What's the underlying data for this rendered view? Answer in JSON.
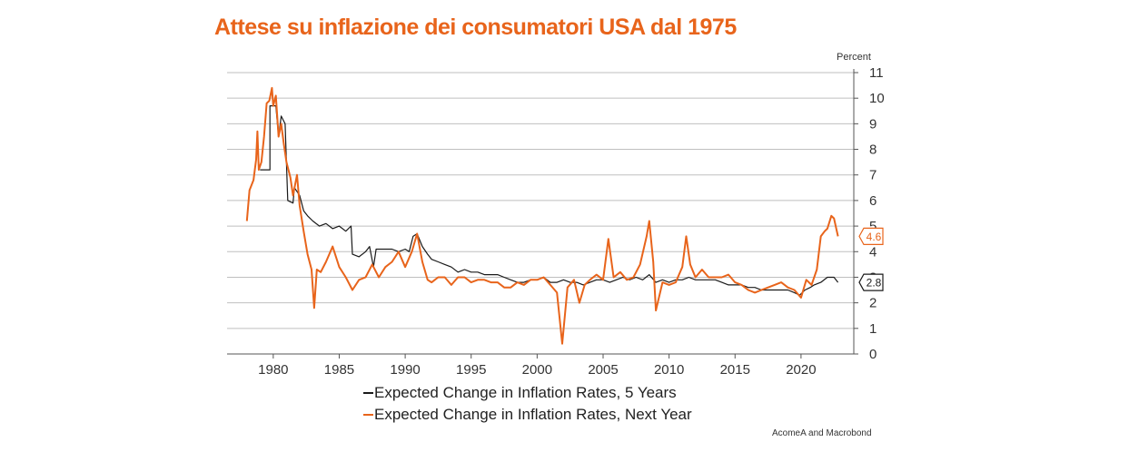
{
  "title": "Attese su inflazione dei consumatori USA dal 1975",
  "source": "AcomeA and Macrobond",
  "colors": {
    "five_year": "#1a1a1a",
    "next_year": "#e8641b",
    "grid": "#bfbfbf"
  },
  "chart_data": {
    "type": "line",
    "unit": "Percent",
    "xlim": [
      1976.5,
      2024
    ],
    "ylim": [
      0,
      11
    ],
    "x_ticks": [
      "1980",
      "1985",
      "1990",
      "1995",
      "2000",
      "2005",
      "2010",
      "2015",
      "2020"
    ],
    "y_ticks": [
      "0",
      "1",
      "2",
      "3",
      "4",
      "5",
      "6",
      "7",
      "8",
      "9",
      "10",
      "11"
    ],
    "y_axis_side": "right",
    "grid": true,
    "legend_position": "bottom",
    "end_labels": [
      "4.6",
      "2.8"
    ],
    "series": [
      {
        "name": "Expected Change in Inflation Rates, 5 Years",
        "color": "#1a1a1a",
        "points": [
          [
            1979.0,
            7.2
          ],
          [
            1979.75,
            7.2
          ],
          [
            1979.75,
            9.7
          ],
          [
            1980.2,
            9.7
          ],
          [
            1980.4,
            8.5
          ],
          [
            1980.6,
            9.3
          ],
          [
            1980.9,
            9.0
          ],
          [
            1981.1,
            6.0
          ],
          [
            1981.5,
            5.9
          ],
          [
            1981.6,
            6.5
          ],
          [
            1982.0,
            6.2
          ],
          [
            1982.3,
            5.6
          ],
          [
            1982.6,
            5.4
          ],
          [
            1983.0,
            5.2
          ],
          [
            1983.5,
            5.0
          ],
          [
            1984.0,
            5.1
          ],
          [
            1984.5,
            4.9
          ],
          [
            1985.0,
            5.0
          ],
          [
            1985.5,
            4.8
          ],
          [
            1985.9,
            5.0
          ],
          [
            1986.0,
            3.9
          ],
          [
            1986.5,
            3.8
          ],
          [
            1987.0,
            4.0
          ],
          [
            1987.3,
            4.2
          ],
          [
            1987.6,
            3.4
          ],
          [
            1987.8,
            4.1
          ],
          [
            1988.5,
            4.1
          ],
          [
            1989.0,
            4.1
          ],
          [
            1989.5,
            4.0
          ],
          [
            1990.0,
            4.1
          ],
          [
            1990.3,
            4.0
          ],
          [
            1990.6,
            4.6
          ],
          [
            1990.9,
            4.7
          ],
          [
            1991.3,
            4.2
          ],
          [
            1991.7,
            3.9
          ],
          [
            1992.0,
            3.7
          ],
          [
            1992.5,
            3.6
          ],
          [
            1993.0,
            3.5
          ],
          [
            1993.5,
            3.4
          ],
          [
            1994.0,
            3.2
          ],
          [
            1994.5,
            3.3
          ],
          [
            1995.0,
            3.2
          ],
          [
            1995.5,
            3.2
          ],
          [
            1996.0,
            3.1
          ],
          [
            1996.5,
            3.1
          ],
          [
            1997.0,
            3.1
          ],
          [
            1997.5,
            3.0
          ],
          [
            1998.0,
            2.9
          ],
          [
            1998.5,
            2.8
          ],
          [
            1999.0,
            2.8
          ],
          [
            1999.5,
            2.9
          ],
          [
            2000.0,
            2.9
          ],
          [
            2000.5,
            3.0
          ],
          [
            2001.0,
            2.8
          ],
          [
            2001.5,
            2.8
          ],
          [
            2002.0,
            2.9
          ],
          [
            2002.5,
            2.8
          ],
          [
            2003.0,
            2.8
          ],
          [
            2003.5,
            2.7
          ],
          [
            2004.0,
            2.8
          ],
          [
            2004.5,
            2.9
          ],
          [
            2005.0,
            2.9
          ],
          [
            2005.5,
            2.8
          ],
          [
            2006.0,
            2.9
          ],
          [
            2006.5,
            3.0
          ],
          [
            2007.0,
            2.9
          ],
          [
            2007.5,
            3.0
          ],
          [
            2008.0,
            2.9
          ],
          [
            2008.5,
            3.1
          ],
          [
            2009.0,
            2.8
          ],
          [
            2009.5,
            2.9
          ],
          [
            2010.0,
            2.8
          ],
          [
            2010.5,
            2.9
          ],
          [
            2011.0,
            2.9
          ],
          [
            2011.5,
            3.0
          ],
          [
            2012.0,
            2.9
          ],
          [
            2012.5,
            2.9
          ],
          [
            2013.0,
            2.9
          ],
          [
            2013.5,
            2.9
          ],
          [
            2014.0,
            2.8
          ],
          [
            2014.5,
            2.7
          ],
          [
            2015.0,
            2.7
          ],
          [
            2015.5,
            2.7
          ],
          [
            2016.0,
            2.6
          ],
          [
            2016.5,
            2.6
          ],
          [
            2017.0,
            2.5
          ],
          [
            2017.5,
            2.5
          ],
          [
            2018.0,
            2.5
          ],
          [
            2018.5,
            2.5
          ],
          [
            2019.0,
            2.5
          ],
          [
            2019.5,
            2.4
          ],
          [
            2019.9,
            2.3
          ],
          [
            2020.3,
            2.5
          ],
          [
            2020.7,
            2.6
          ],
          [
            2021.0,
            2.7
          ],
          [
            2021.5,
            2.8
          ],
          [
            2022.0,
            3.0
          ],
          [
            2022.5,
            3.0
          ],
          [
            2022.8,
            2.8
          ]
        ]
      },
      {
        "name": "Expected Change in Inflation Rates, Next Year",
        "color": "#e8641b",
        "points": [
          [
            1978.0,
            5.2
          ],
          [
            1978.2,
            6.4
          ],
          [
            1978.5,
            6.8
          ],
          [
            1978.7,
            7.6
          ],
          [
            1978.8,
            8.7
          ],
          [
            1978.9,
            7.2
          ],
          [
            1979.1,
            7.5
          ],
          [
            1979.3,
            8.5
          ],
          [
            1979.5,
            9.8
          ],
          [
            1979.7,
            9.9
          ],
          [
            1979.9,
            10.4
          ],
          [
            1980.0,
            9.7
          ],
          [
            1980.2,
            10.1
          ],
          [
            1980.4,
            8.5
          ],
          [
            1980.6,
            9.0
          ],
          [
            1980.8,
            8.2
          ],
          [
            1981.0,
            7.5
          ],
          [
            1981.3,
            6.9
          ],
          [
            1981.5,
            6.2
          ],
          [
            1981.8,
            7.0
          ],
          [
            1982.0,
            5.8
          ],
          [
            1982.3,
            4.8
          ],
          [
            1982.6,
            3.9
          ],
          [
            1982.9,
            3.3
          ],
          [
            1983.1,
            1.8
          ],
          [
            1983.3,
            3.3
          ],
          [
            1983.6,
            3.2
          ],
          [
            1984.0,
            3.6
          ],
          [
            1984.5,
            4.2
          ],
          [
            1985.0,
            3.4
          ],
          [
            1985.5,
            3.0
          ],
          [
            1986.0,
            2.5
          ],
          [
            1986.5,
            2.9
          ],
          [
            1987.0,
            3.0
          ],
          [
            1987.5,
            3.5
          ],
          [
            1988.0,
            3.0
          ],
          [
            1988.5,
            3.4
          ],
          [
            1989.0,
            3.6
          ],
          [
            1989.5,
            4.0
          ],
          [
            1990.0,
            3.4
          ],
          [
            1990.5,
            4.0
          ],
          [
            1990.9,
            4.7
          ],
          [
            1991.3,
            3.6
          ],
          [
            1991.7,
            2.9
          ],
          [
            1992.0,
            2.8
          ],
          [
            1992.5,
            3.0
          ],
          [
            1993.0,
            3.0
          ],
          [
            1993.5,
            2.7
          ],
          [
            1994.0,
            3.0
          ],
          [
            1994.5,
            3.0
          ],
          [
            1995.0,
            2.8
          ],
          [
            1995.5,
            2.9
          ],
          [
            1996.0,
            2.9
          ],
          [
            1996.5,
            2.8
          ],
          [
            1997.0,
            2.8
          ],
          [
            1997.5,
            2.6
          ],
          [
            1998.0,
            2.6
          ],
          [
            1998.5,
            2.8
          ],
          [
            1999.0,
            2.7
          ],
          [
            1999.5,
            2.9
          ],
          [
            2000.0,
            2.9
          ],
          [
            2000.5,
            3.0
          ],
          [
            2001.0,
            2.7
          ],
          [
            2001.5,
            2.4
          ],
          [
            2001.9,
            0.4
          ],
          [
            2002.3,
            2.6
          ],
          [
            2002.8,
            2.9
          ],
          [
            2003.2,
            2.0
          ],
          [
            2003.6,
            2.7
          ],
          [
            2004.0,
            2.9
          ],
          [
            2004.5,
            3.1
          ],
          [
            2005.0,
            2.9
          ],
          [
            2005.4,
            4.5
          ],
          [
            2005.8,
            3.0
          ],
          [
            2006.3,
            3.2
          ],
          [
            2006.8,
            2.9
          ],
          [
            2007.3,
            3.0
          ],
          [
            2007.8,
            3.5
          ],
          [
            2008.3,
            4.6
          ],
          [
            2008.5,
            5.2
          ],
          [
            2008.8,
            3.6
          ],
          [
            2009.0,
            1.7
          ],
          [
            2009.5,
            2.8
          ],
          [
            2010.0,
            2.7
          ],
          [
            2010.5,
            2.8
          ],
          [
            2011.0,
            3.4
          ],
          [
            2011.3,
            4.6
          ],
          [
            2011.6,
            3.5
          ],
          [
            2012.0,
            3.0
          ],
          [
            2012.5,
            3.3
          ],
          [
            2013.0,
            3.0
          ],
          [
            2013.5,
            3.0
          ],
          [
            2014.0,
            3.0
          ],
          [
            2014.5,
            3.1
          ],
          [
            2015.0,
            2.8
          ],
          [
            2015.5,
            2.7
          ],
          [
            2016.0,
            2.5
          ],
          [
            2016.5,
            2.4
          ],
          [
            2017.0,
            2.5
          ],
          [
            2017.5,
            2.6
          ],
          [
            2018.0,
            2.7
          ],
          [
            2018.5,
            2.8
          ],
          [
            2019.0,
            2.6
          ],
          [
            2019.5,
            2.5
          ],
          [
            2020.0,
            2.2
          ],
          [
            2020.4,
            2.9
          ],
          [
            2020.8,
            2.7
          ],
          [
            2021.2,
            3.3
          ],
          [
            2021.5,
            4.6
          ],
          [
            2021.8,
            4.8
          ],
          [
            2022.0,
            4.9
          ],
          [
            2022.3,
            5.4
          ],
          [
            2022.5,
            5.3
          ],
          [
            2022.8,
            4.6
          ]
        ]
      }
    ]
  }
}
